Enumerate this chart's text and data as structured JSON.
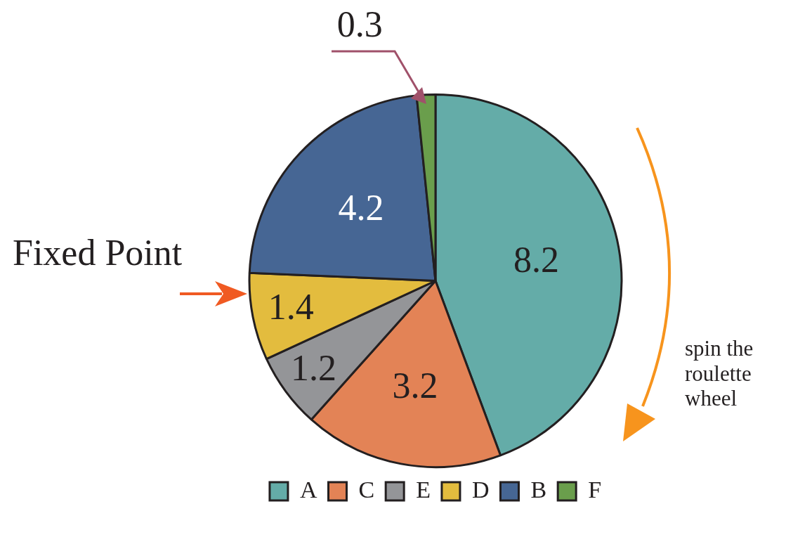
{
  "chart_data": {
    "type": "pie",
    "categories": [
      "A",
      "C",
      "E",
      "D",
      "B",
      "F"
    ],
    "values": [
      8.2,
      3.2,
      1.2,
      1.4,
      4.2,
      0.3
    ],
    "colors": [
      "#64aca8",
      "#e38356",
      "#949598",
      "#e3bc3e",
      "#466694",
      "#6a9e4c"
    ],
    "data_labels": true,
    "legend": "bottom",
    "annotations": [
      "Fixed Point",
      "spin the roulette wheel"
    ]
  }
}
